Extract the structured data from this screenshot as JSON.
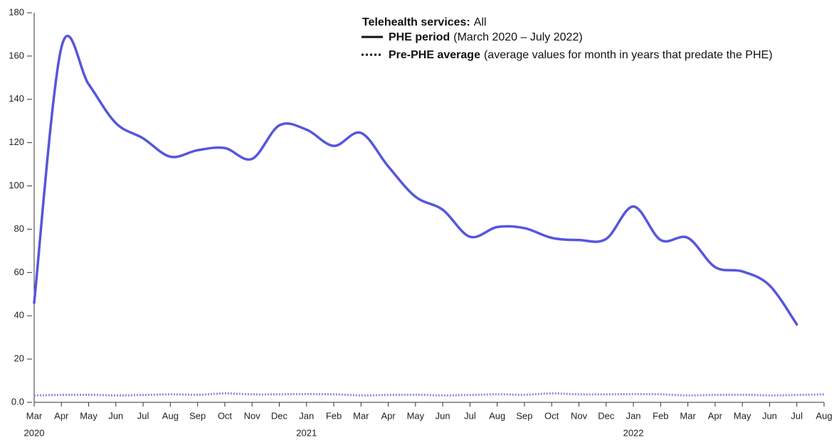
{
  "chart_data": {
    "type": "line",
    "legend_title": "Telehealth services:",
    "legend_value": "All",
    "categories": [
      "Mar",
      "Apr",
      "May",
      "Jun",
      "Jul",
      "Aug",
      "Sep",
      "Oct",
      "Nov",
      "Dec",
      "Jan",
      "Feb",
      "Mar",
      "Apr",
      "May",
      "Jun",
      "Jul",
      "Aug",
      "Sep",
      "Oct",
      "Nov",
      "Dec",
      "Jan",
      "Feb",
      "Mar",
      "Apr",
      "May",
      "Jun",
      "Jul",
      "Aug"
    ],
    "year_labels": [
      "2020",
      "2021",
      "2022"
    ],
    "series": [
      {
        "name": "PHE period",
        "description": "(March 2020 – July 2022)",
        "color": "#5656dc",
        "style": "solid",
        "values": [
          46,
          164,
          147,
          129,
          122,
          113.5,
          116.5,
          117.5,
          112.5,
          128,
          126,
          118.5,
          124.5,
          109,
          95,
          89,
          76.5,
          81,
          80.5,
          76,
          75,
          75.5,
          90.5,
          75,
          76,
          62.5,
          60.5,
          54,
          36,
          null
        ]
      },
      {
        "name": "Pre-PHE average",
        "description": "(average values for month in years that predate the PHE)",
        "color": "#8b8bea",
        "style": "dotted",
        "values": [
          3.2,
          3.4,
          3.5,
          3.2,
          3.4,
          3.7,
          3.5,
          4.1,
          3.7,
          3.7,
          3.8,
          3.7,
          3.2,
          3.4,
          3.5,
          3.2,
          3.4,
          3.7,
          3.5,
          4.1,
          3.7,
          3.7,
          3.8,
          3.7,
          3.2,
          3.4,
          3.5,
          3.2,
          3.4,
          3.7
        ]
      }
    ],
    "ylim": [
      0,
      180
    ],
    "yticks": [
      {
        "value": 0,
        "label": "0.0"
      },
      20,
      40,
      60,
      80,
      100,
      120,
      140,
      160,
      180
    ],
    "grid": false
  }
}
